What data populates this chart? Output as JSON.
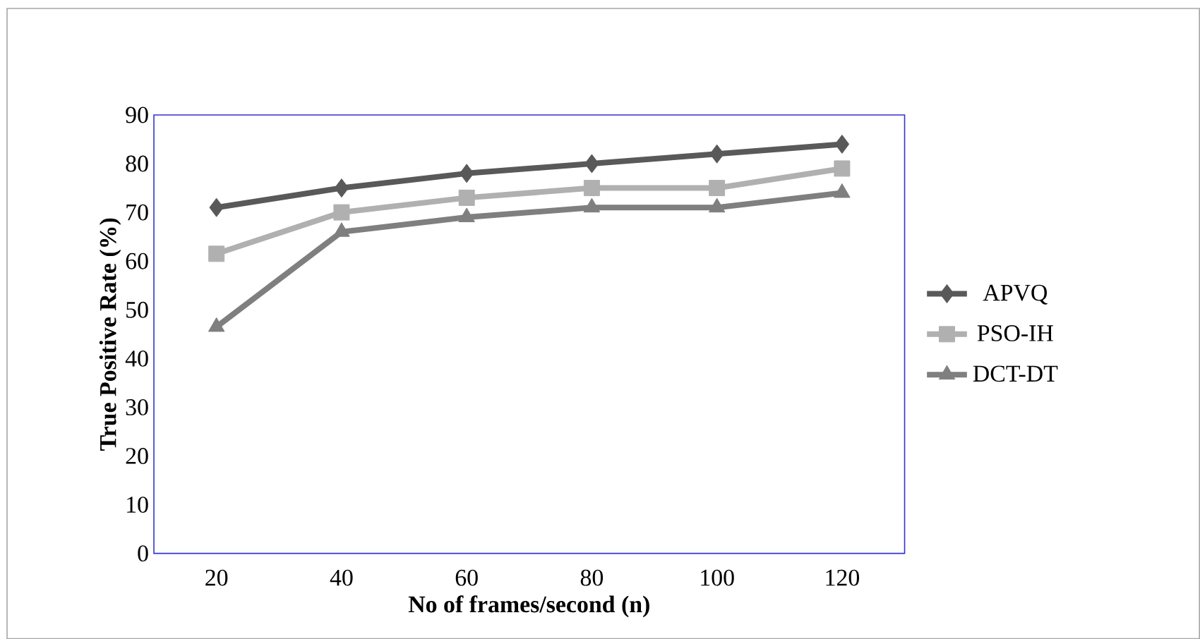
{
  "chart_data": {
    "type": "line",
    "xlabel": "No of frames/second (n)",
    "ylabel": "True Positive Rate (%)",
    "categories": [
      "20",
      "40",
      "60",
      "80",
      "100",
      "120"
    ],
    "series": [
      {
        "name": "APVQ",
        "color": "#595959",
        "marker": "diamond",
        "values": [
          71,
          75,
          78,
          80,
          82,
          84
        ]
      },
      {
        "name": "PSO-IH",
        "color": "#b0b0b0",
        "marker": "square",
        "values": [
          61.5,
          70,
          73,
          75,
          75,
          79
        ]
      },
      {
        "name": "DCT-DT",
        "color": "#7f7f7f",
        "marker": "triangle",
        "values": [
          46.5,
          66,
          69,
          71,
          71,
          74
        ]
      }
    ],
    "ylim": [
      0,
      90
    ],
    "yticks": [
      0,
      10,
      20,
      30,
      40,
      50,
      60,
      70,
      80,
      90
    ],
    "grid": false,
    "legend": "right"
  }
}
